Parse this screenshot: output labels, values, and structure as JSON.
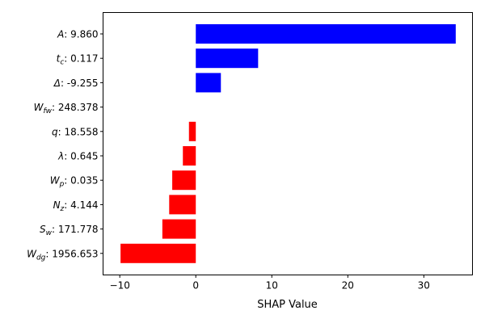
{
  "chart_data": {
    "type": "bar",
    "orientation": "horizontal",
    "xlabel": "SHAP Value",
    "ylabel": "",
    "title": "",
    "xlim": [
      -12.2,
      36.4
    ],
    "xticks": [
      -10,
      0,
      10,
      20,
      30
    ],
    "xtick_labels": [
      "−10",
      "0",
      "10",
      "20",
      "30"
    ],
    "grid": false,
    "positive_color": "#0000ff",
    "negative_color": "#ff0000",
    "categories": [
      {
        "var": "A",
        "sub": "",
        "value_text": ": 9.860"
      },
      {
        "var": "t",
        "sub": "c",
        "value_text": ": 0.117"
      },
      {
        "var": "Δ",
        "sub": "",
        "value_text": ": -9.255"
      },
      {
        "var": "W",
        "sub": "fw",
        "value_text": ": 248.378"
      },
      {
        "var": "q",
        "sub": "",
        "value_text": ": 18.558"
      },
      {
        "var": "λ",
        "sub": "",
        "value_text": ": 0.645"
      },
      {
        "var": "W",
        "sub": "p",
        "value_text": ": 0.035"
      },
      {
        "var": "N",
        "sub": "z",
        "value_text": ": 4.144"
      },
      {
        "var": "S",
        "sub": "w",
        "value_text": ": 171.778"
      },
      {
        "var": "W",
        "sub": "dg",
        "value_text": ": 1956.653"
      }
    ],
    "values": [
      34.2,
      8.2,
      3.3,
      0.0,
      -0.9,
      -1.7,
      -3.1,
      -3.5,
      -4.4,
      -9.9
    ]
  }
}
